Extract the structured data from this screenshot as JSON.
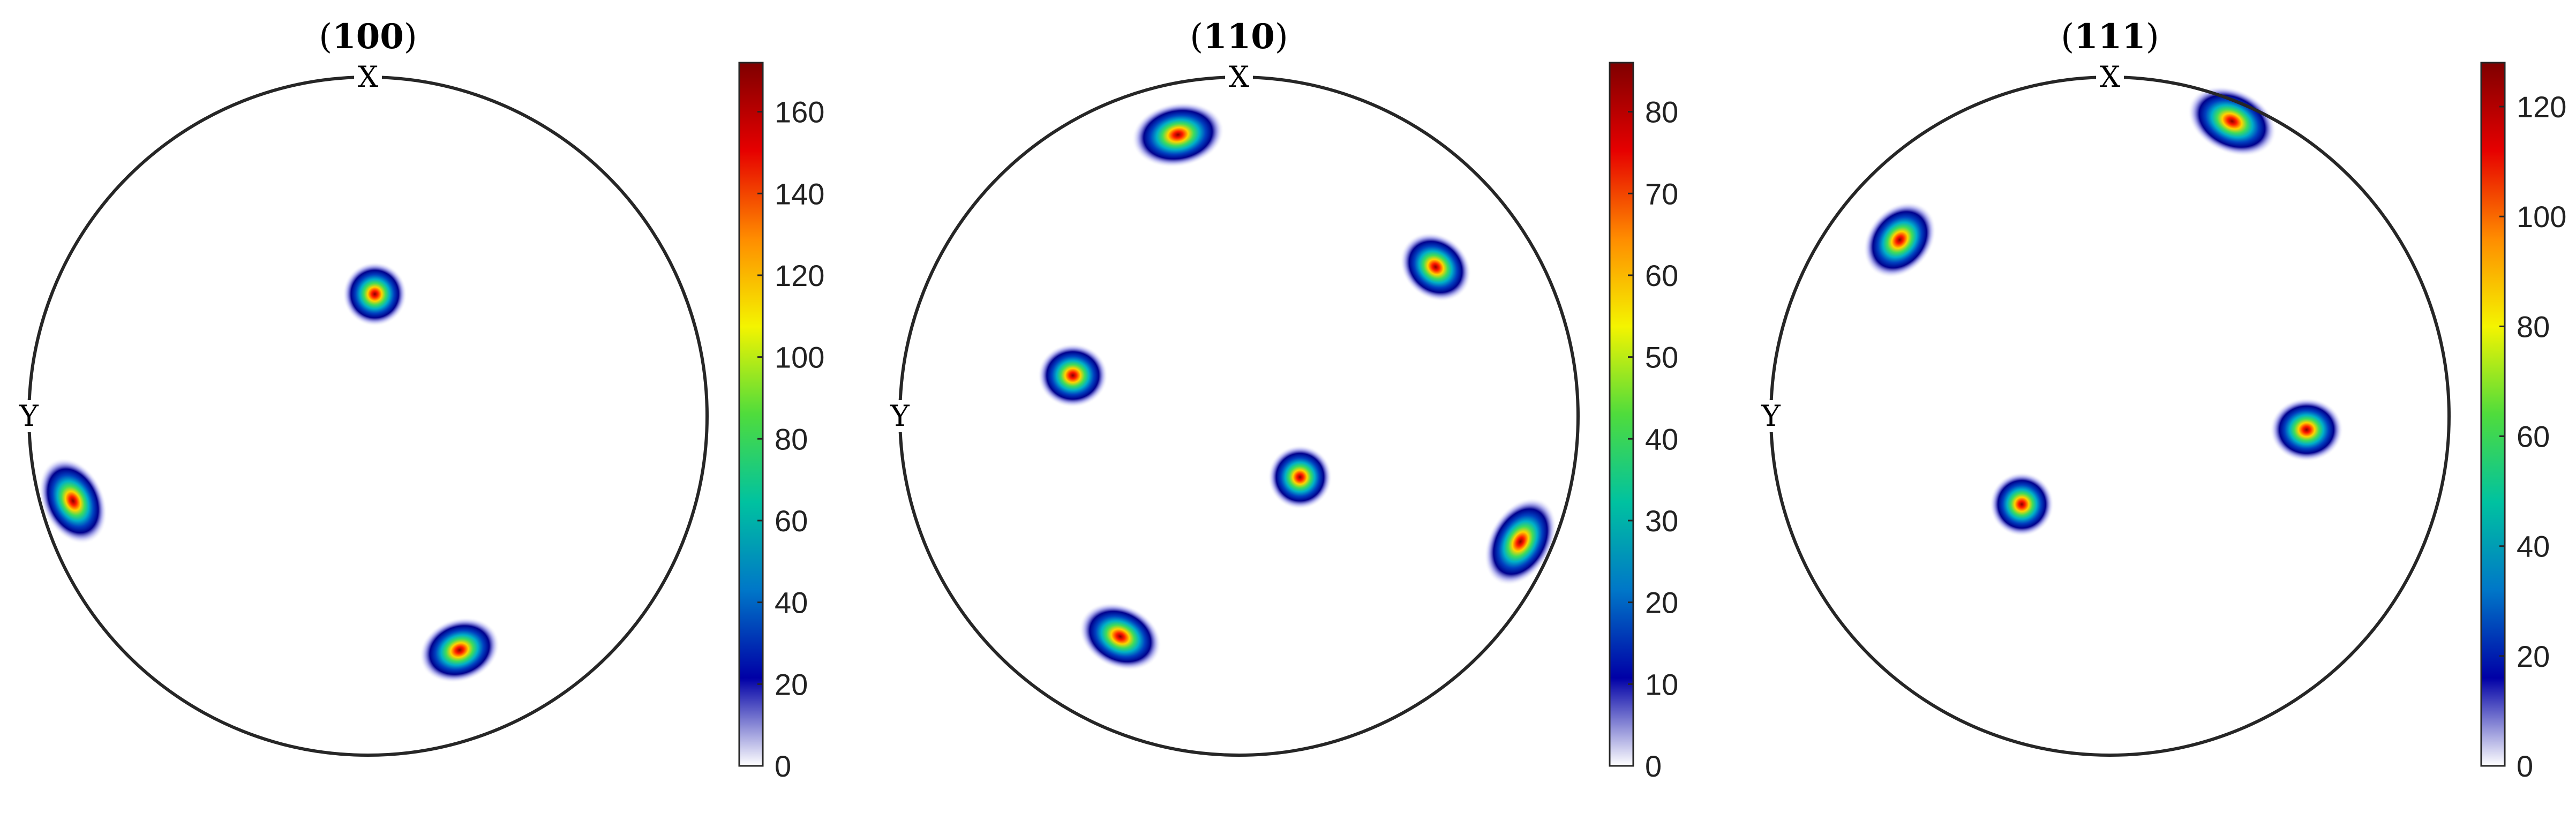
{
  "colors": {
    "circle_stroke": "#262626",
    "colorbar_stops": [
      "#ffffff",
      "#0000a6",
      "#0077c8",
      "#00c2a0",
      "#4fdc3c",
      "#f4f400",
      "#ff8c00",
      "#e60000",
      "#7f0000"
    ]
  },
  "chart_data": [
    {
      "type": "heatmap",
      "subtype": "pole-figure",
      "title": {
        "open": "(",
        "bold": "100",
        "close": ")"
      },
      "axis_labels": {
        "x": "X",
        "y": "Y"
      },
      "colorbar": {
        "min": 0,
        "max": 172,
        "ticks": [
          0,
          20,
          40,
          60,
          80,
          100,
          120,
          140,
          160
        ]
      },
      "poles": [
        {
          "x": 0.02,
          "y": 0.36,
          "intensity": 172,
          "elongation": 1.0,
          "tilt_deg": 0
        },
        {
          "x": -0.87,
          "y": -0.25,
          "intensity": 150,
          "elongation": 1.45,
          "tilt_deg": 65
        },
        {
          "x": 0.27,
          "y": -0.69,
          "intensity": 160,
          "elongation": 1.3,
          "tilt_deg": -20
        }
      ]
    },
    {
      "type": "heatmap",
      "subtype": "pole-figure",
      "title": {
        "open": "(",
        "bold": "110",
        "close": ")"
      },
      "axis_labels": {
        "x": "X",
        "y": "Y"
      },
      "colorbar": {
        "min": 0,
        "max": 86,
        "ticks": [
          0,
          10,
          20,
          30,
          40,
          50,
          60,
          70,
          80
        ]
      },
      "poles": [
        {
          "x": -0.18,
          "y": 0.83,
          "intensity": 86,
          "elongation": 1.45,
          "tilt_deg": -10
        },
        {
          "x": 0.58,
          "y": 0.44,
          "intensity": 82,
          "elongation": 1.2,
          "tilt_deg": 40
        },
        {
          "x": -0.49,
          "y": 0.12,
          "intensity": 84,
          "elongation": 1.1,
          "tilt_deg": 0
        },
        {
          "x": 0.18,
          "y": -0.18,
          "intensity": 86,
          "elongation": 1.0,
          "tilt_deg": 0
        },
        {
          "x": 0.83,
          "y": -0.37,
          "intensity": 80,
          "elongation": 1.5,
          "tilt_deg": -60
        },
        {
          "x": -0.35,
          "y": -0.65,
          "intensity": 82,
          "elongation": 1.35,
          "tilt_deg": 25
        }
      ]
    },
    {
      "type": "heatmap",
      "subtype": "pole-figure",
      "title": {
        "open": "(",
        "bold": "111",
        "close": ")"
      },
      "axis_labels": {
        "x": "X",
        "y": "Y"
      },
      "colorbar": {
        "min": 0,
        "max": 128,
        "ticks": [
          0,
          20,
          40,
          60,
          80,
          100,
          120
        ]
      },
      "poles": [
        {
          "x": 0.36,
          "y": 0.87,
          "intensity": 128,
          "elongation": 1.45,
          "tilt_deg": 25
        },
        {
          "x": -0.62,
          "y": 0.52,
          "intensity": 126,
          "elongation": 1.3,
          "tilt_deg": -50
        },
        {
          "x": 0.58,
          "y": -0.04,
          "intensity": 124,
          "elongation": 1.15,
          "tilt_deg": 0
        },
        {
          "x": -0.26,
          "y": -0.26,
          "intensity": 128,
          "elongation": 1.0,
          "tilt_deg": 0
        }
      ]
    }
  ]
}
